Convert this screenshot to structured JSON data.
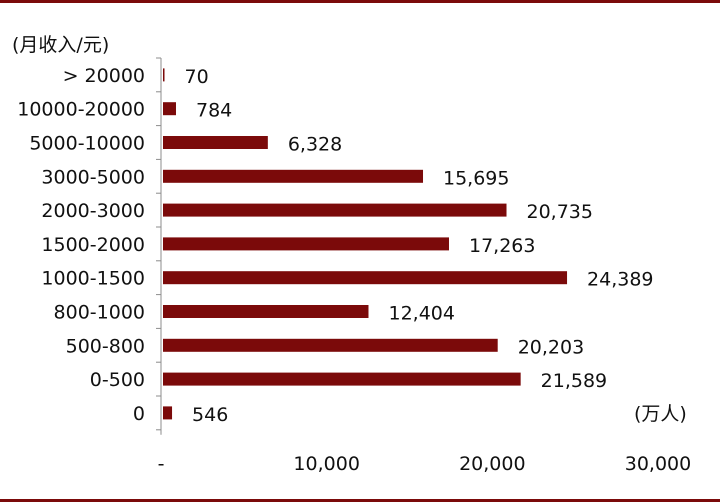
{
  "chart_data": {
    "type": "bar",
    "orientation": "horizontal",
    "categories": [
      "0",
      "0-500",
      "500-800",
      "800-1000",
      "1000-1500",
      "1500-2000",
      "2000-3000",
      "3000-5000",
      "5000-10000",
      "10000-20000",
      "> 20000"
    ],
    "values": [
      546,
      21589,
      20203,
      12404,
      24389,
      17263,
      20735,
      15695,
      6328,
      784,
      70
    ],
    "value_labels": [
      "546",
      "21,589",
      "20,203",
      "12,404",
      "24,389",
      "17,263",
      "20,735",
      "15,695",
      "6,328",
      "784",
      "70"
    ],
    "xlim": [
      0,
      30000
    ],
    "x_ticks": [
      "-",
      "10,000",
      "20,000",
      "30,000"
    ],
    "x_tick_values": [
      0,
      10000,
      20000,
      30000
    ],
    "ylabel": "(月收入/元)",
    "xlabel": "(万人)",
    "grid": false,
    "colors": {
      "bar": "#7b0a0a",
      "frame": "#7b0a0a",
      "axis": "#8c8c8c",
      "text": "#111111"
    }
  }
}
